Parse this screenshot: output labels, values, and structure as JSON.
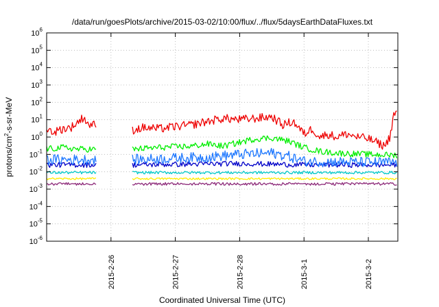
{
  "chart_data": {
    "type": "line",
    "title": "/data/run/goesPlots/archive/2015-03-02/10:00/flux/../flux/5daysEarthDataFluxes.txt",
    "xlabel": "Coordinated Universal Time (UTC)",
    "ylabel": {
      "prefix": "protons/cm",
      "sup": "2",
      "suffix": "-s-sr-MeV"
    },
    "y_scale": "log",
    "ylim": [
      1e-06,
      1000000.0
    ],
    "y_ticks": [
      {
        "value": 1e-06,
        "exp": "-6"
      },
      {
        "value": 1e-05,
        "exp": "-5"
      },
      {
        "value": 0.0001,
        "exp": "-4"
      },
      {
        "value": 0.001,
        "exp": "-3"
      },
      {
        "value": 0.01,
        "exp": "-2"
      },
      {
        "value": 0.1,
        "exp": "-1"
      },
      {
        "value": 1,
        "exp": "0"
      },
      {
        "value": 10,
        "exp": "1"
      },
      {
        "value": 100,
        "exp": "2"
      },
      {
        "value": 1000,
        "exp": "3"
      },
      {
        "value": 10000,
        "exp": "4"
      },
      {
        "value": 100000,
        "exp": "5"
      },
      {
        "value": 1000000,
        "exp": "6"
      }
    ],
    "y_tick_base": "10",
    "xlim": [
      "2015-02-25T00:00",
      "2015-03-02T11:00"
    ],
    "x_ticks": [
      {
        "label": "2015-2-26",
        "date": "2015-02-26T00:00"
      },
      {
        "label": "2015-2-27",
        "date": "2015-02-27T00:00"
      },
      {
        "label": "2015-2-28",
        "date": "2015-02-28T00:00"
      },
      {
        "label": "2015-3-1",
        "date": "2015-03-01T00:00"
      },
      {
        "label": "2015-3-2",
        "date": "2015-03-02T00:00"
      }
    ],
    "grid": true,
    "data_gap": [
      "2015-02-25T18:30",
      "2015-02-26T08:00"
    ],
    "series": [
      {
        "color": "#ee0000",
        "x": [
          "2015-02-25T00:00",
          "2015-02-25T03:00",
          "2015-02-25T06:00",
          "2015-02-25T09:00",
          "2015-02-25T12:00",
          "2015-02-25T14:00",
          "2015-02-25T15:00",
          "2015-02-25T17:00",
          "2015-02-25T18:30",
          "2015-02-26T08:00",
          "2015-02-26T12:00",
          "2015-02-26T18:00",
          "2015-02-27T00:00",
          "2015-02-27T06:00",
          "2015-02-27T12:00",
          "2015-02-27T18:00",
          "2015-02-28T00:00",
          "2015-02-28T06:00",
          "2015-02-28T12:00",
          "2015-02-28T16:00",
          "2015-02-28T20:00",
          "2015-03-01T00:00",
          "2015-03-01T03:00",
          "2015-03-01T06:00",
          "2015-03-01T09:00",
          "2015-03-01T12:00",
          "2015-03-01T16:00",
          "2015-03-01T20:00",
          "2015-03-02T00:00",
          "2015-03-02T03:00",
          "2015-03-02T06:00",
          "2015-03-02T08:00",
          "2015-03-02T09:30",
          "2015-03-02T11:00"
        ],
        "y": [
          2.5,
          2,
          3,
          3.5,
          8,
          15,
          6,
          5,
          5,
          2.5,
          3.5,
          3,
          4,
          5,
          8,
          12,
          10,
          12,
          15,
          5,
          8,
          1.5,
          3,
          1,
          1.5,
          1,
          1.5,
          1,
          0.8,
          0.5,
          0.3,
          1,
          20,
          30
        ],
        "noise": 0.25
      },
      {
        "color": "#00ee00",
        "x": [
          "2015-02-25T00:00",
          "2015-02-25T06:00",
          "2015-02-25T12:00",
          "2015-02-25T18:30",
          "2015-02-26T08:00",
          "2015-02-26T18:00",
          "2015-02-27T06:00",
          "2015-02-27T12:00",
          "2015-02-27T18:00",
          "2015-02-28T00:00",
          "2015-02-28T06:00",
          "2015-02-28T12:00",
          "2015-02-28T18:00",
          "2015-03-01T00:00",
          "2015-03-01T06:00",
          "2015-03-01T12:00",
          "2015-03-02T00:00",
          "2015-03-02T11:00"
        ],
        "y": [
          0.2,
          0.25,
          0.2,
          0.2,
          0.2,
          0.25,
          0.3,
          0.4,
          0.3,
          0.5,
          0.8,
          0.9,
          0.6,
          0.25,
          0.15,
          0.12,
          0.1,
          0.09
        ],
        "noise": 0.18
      },
      {
        "color": "#1e78ff",
        "x": [
          "2015-02-25T00:00",
          "2015-02-25T18:30",
          "2015-02-26T08:00",
          "2015-02-27T00:00",
          "2015-02-27T12:00",
          "2015-02-28T00:00",
          "2015-02-28T12:00",
          "2015-02-28T18:00",
          "2015-03-01T00:00",
          "2015-03-02T00:00",
          "2015-03-02T11:00"
        ],
        "y": [
          0.05,
          0.05,
          0.05,
          0.06,
          0.07,
          0.1,
          0.12,
          0.08,
          0.04,
          0.035,
          0.035
        ],
        "noise": 0.3
      },
      {
        "color": "#0000c8",
        "x": [
          "2015-02-25T00:00",
          "2015-02-25T18:30",
          "2015-02-26T08:00",
          "2015-02-28T00:00",
          "2015-03-01T00:00",
          "2015-03-02T11:00"
        ],
        "y": [
          0.025,
          0.025,
          0.025,
          0.03,
          0.025,
          0.025
        ],
        "noise": 0.15
      },
      {
        "color": "#00c8c8",
        "x": [
          "2015-02-25T00:00",
          "2015-02-25T18:30",
          "2015-02-26T08:00",
          "2015-03-02T11:00"
        ],
        "y": [
          0.009,
          0.009,
          0.009,
          0.009
        ],
        "noise": 0.08
      },
      {
        "color": "#ffee00",
        "x": [
          "2015-02-25T00:00",
          "2015-02-25T18:30",
          "2015-02-26T08:00",
          "2015-03-02T11:00"
        ],
        "y": [
          0.004,
          0.004,
          0.004,
          0.004
        ],
        "noise": 0.06
      },
      {
        "color": "#8c2878",
        "x": [
          "2015-02-25T00:00",
          "2015-02-25T18:30",
          "2015-02-26T08:00",
          "2015-03-02T11:00"
        ],
        "y": [
          0.002,
          0.002,
          0.002,
          0.002
        ],
        "noise": 0.08
      }
    ]
  }
}
